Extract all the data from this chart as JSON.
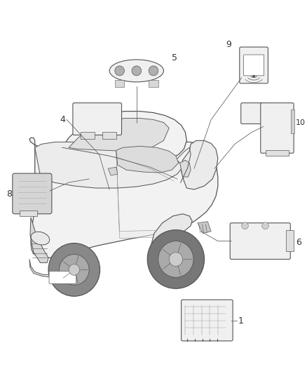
{
  "bg_color": "#ffffff",
  "figure_width": 4.38,
  "figure_height": 5.33,
  "dpi": 100,
  "line_color": "#555555",
  "comp_face": "#f0f0f0",
  "comp_edge": "#555555",
  "label_color": "#333333",
  "label_fontsize": 9,
  "car_face": "#f2f2f2",
  "wheel_dark": "#888888",
  "wheel_mid": "#aaaaaa",
  "wheel_light": "#cccccc"
}
